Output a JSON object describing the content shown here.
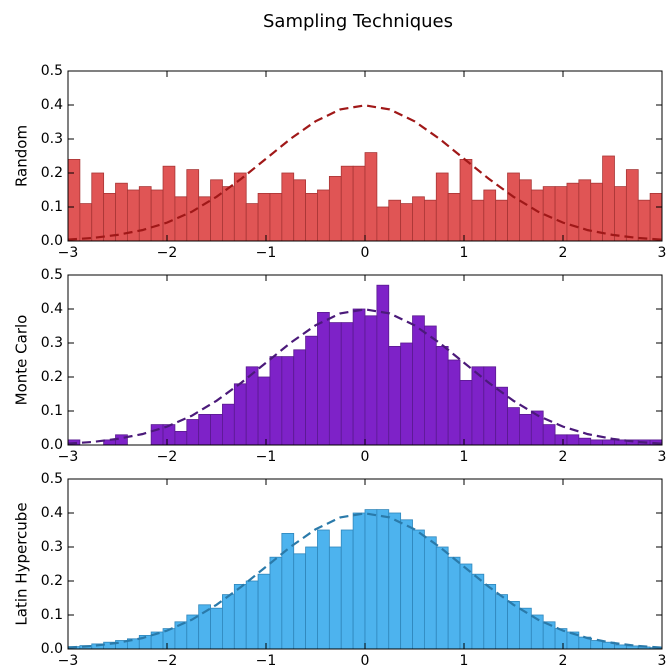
{
  "title": "Sampling Techniques",
  "chart_data": [
    {
      "type": "histogram",
      "ylabel": "Random",
      "color": "#e05555",
      "edgecolor": "#a83535",
      "bins": [
        -3,
        -2.88,
        -2.76,
        -2.64,
        -2.52,
        -2.4,
        -2.28,
        -2.16,
        -2.04,
        -1.92,
        -1.8,
        -1.68,
        -1.56,
        -1.44,
        -1.32,
        -1.2,
        -1.08,
        -0.96,
        -0.84,
        -0.72,
        -0.6,
        -0.48,
        -0.36,
        -0.24,
        -0.12,
        0,
        0.12,
        0.24,
        0.36,
        0.48,
        0.6,
        0.72,
        0.84,
        0.96,
        1.08,
        1.2,
        1.32,
        1.44,
        1.56,
        1.68,
        1.8,
        1.92,
        2.04,
        2.16,
        2.28,
        2.4,
        2.52,
        2.64,
        2.76,
        2.88,
        3
      ],
      "values": [
        0.24,
        0.11,
        0.2,
        0.14,
        0.17,
        0.15,
        0.16,
        0.15,
        0.22,
        0.13,
        0.21,
        0.13,
        0.18,
        0.16,
        0.2,
        0.11,
        0.14,
        0.14,
        0.2,
        0.18,
        0.14,
        0.15,
        0.19,
        0.22,
        0.22,
        0.26,
        0.1,
        0.12,
        0.11,
        0.13,
        0.12,
        0.2,
        0.14,
        0.24,
        0.12,
        0.15,
        0.12,
        0.2,
        0.18,
        0.15,
        0.16,
        0.16,
        0.17,
        0.18,
        0.17,
        0.25,
        0.16,
        0.21,
        0.12,
        0.14
      ],
      "curve": {
        "color": "#a01818",
        "x": [
          -3,
          -2.75,
          -2.5,
          -2.25,
          -2,
          -1.75,
          -1.5,
          -1.25,
          -1,
          -0.75,
          -0.5,
          -0.25,
          0,
          0.25,
          0.5,
          0.75,
          1,
          1.25,
          1.5,
          1.75,
          2,
          2.25,
          2.5,
          2.75,
          3
        ],
        "values": [
          0.004,
          0.009,
          0.018,
          0.032,
          0.054,
          0.086,
          0.13,
          0.183,
          0.242,
          0.301,
          0.352,
          0.387,
          0.399,
          0.387,
          0.352,
          0.301,
          0.242,
          0.183,
          0.13,
          0.086,
          0.054,
          0.032,
          0.018,
          0.009,
          0.004
        ]
      },
      "xlim": [
        -3,
        3
      ],
      "ylim": [
        0,
        0.5
      ],
      "xticks": [
        {
          "value": -3,
          "label": "−3"
        },
        {
          "value": -2,
          "label": "−2"
        },
        {
          "value": -1,
          "label": "−1"
        },
        0,
        1,
        2,
        3
      ],
      "yticks": [
        {
          "value": 0,
          "label": "0.0"
        },
        0.1,
        0.2,
        0.3,
        0.4,
        {
          "value": 0.5,
          "label": "0.5"
        }
      ]
    },
    {
      "type": "histogram",
      "ylabel": "Monte Carlo",
      "color": "#7e22c8",
      "edgecolor": "#5a1a90",
      "bins": [
        -3,
        -2.88,
        -2.76,
        -2.64,
        -2.52,
        -2.4,
        -2.28,
        -2.16,
        -2.04,
        -1.92,
        -1.8,
        -1.68,
        -1.56,
        -1.44,
        -1.32,
        -1.2,
        -1.08,
        -0.96,
        -0.84,
        -0.72,
        -0.6,
        -0.48,
        -0.36,
        -0.24,
        -0.12,
        0,
        0.12,
        0.24,
        0.36,
        0.48,
        0.6,
        0.72,
        0.84,
        0.96,
        1.08,
        1.2,
        1.32,
        1.44,
        1.56,
        1.68,
        1.8,
        1.92,
        2.04,
        2.16,
        2.28,
        2.4,
        2.52,
        2.64,
        2.76,
        2.88,
        3
      ],
      "values": [
        0.015,
        0,
        0,
        0.015,
        0.03,
        0,
        0,
        0.06,
        0.06,
        0.04,
        0.075,
        0.09,
        0.09,
        0.12,
        0.18,
        0.23,
        0.2,
        0.26,
        0.26,
        0.28,
        0.32,
        0.39,
        0.36,
        0.36,
        0.4,
        0.38,
        0.47,
        0.29,
        0.3,
        0.38,
        0.35,
        0.29,
        0.25,
        0.19,
        0.23,
        0.23,
        0.17,
        0.11,
        0.09,
        0.1,
        0.06,
        0.03,
        0.03,
        0.02,
        0.015,
        0.015,
        0.015,
        0.015,
        0.015,
        0.015
      ],
      "curve": {
        "color": "#4b1a7a",
        "x": [
          -3,
          -2.75,
          -2.5,
          -2.25,
          -2,
          -1.75,
          -1.5,
          -1.25,
          -1,
          -0.75,
          -0.5,
          -0.25,
          0,
          0.25,
          0.5,
          0.75,
          1,
          1.25,
          1.5,
          1.75,
          2,
          2.25,
          2.5,
          2.75,
          3
        ],
        "values": [
          0.004,
          0.009,
          0.018,
          0.032,
          0.054,
          0.086,
          0.13,
          0.183,
          0.242,
          0.301,
          0.352,
          0.387,
          0.399,
          0.387,
          0.352,
          0.301,
          0.242,
          0.183,
          0.13,
          0.086,
          0.054,
          0.032,
          0.018,
          0.009,
          0.004
        ]
      },
      "xlim": [
        -3,
        3
      ],
      "ylim": [
        0,
        0.5
      ],
      "xticks": [
        {
          "value": -3,
          "label": "−3"
        },
        {
          "value": -2,
          "label": "−2"
        },
        {
          "value": -1,
          "label": "−1"
        },
        0,
        1,
        2,
        3
      ],
      "yticks": [
        {
          "value": 0,
          "label": "0.0"
        },
        0.1,
        0.2,
        0.3,
        0.4,
        {
          "value": 0.5,
          "label": "0.5"
        }
      ]
    },
    {
      "type": "histogram",
      "ylabel": "Latin Hypercube",
      "color": "#4db3ee",
      "edgecolor": "#2f86bb",
      "bins": [
        -3,
        -2.88,
        -2.76,
        -2.64,
        -2.52,
        -2.4,
        -2.28,
        -2.16,
        -2.04,
        -1.92,
        -1.8,
        -1.68,
        -1.56,
        -1.44,
        -1.32,
        -1.2,
        -1.08,
        -0.96,
        -0.84,
        -0.72,
        -0.6,
        -0.48,
        -0.36,
        -0.24,
        -0.12,
        0,
        0.12,
        0.24,
        0.36,
        0.48,
        0.6,
        0.72,
        0.84,
        0.96,
        1.08,
        1.2,
        1.32,
        1.44,
        1.56,
        1.68,
        1.8,
        1.92,
        2.04,
        2.16,
        2.28,
        2.4,
        2.52,
        2.64,
        2.76,
        2.88,
        3
      ],
      "values": [
        0.007,
        0.01,
        0.015,
        0.02,
        0.025,
        0.03,
        0.04,
        0.05,
        0.06,
        0.08,
        0.1,
        0.13,
        0.12,
        0.16,
        0.19,
        0.2,
        0.22,
        0.27,
        0.34,
        0.28,
        0.3,
        0.35,
        0.3,
        0.35,
        0.4,
        0.41,
        0.41,
        0.4,
        0.38,
        0.35,
        0.33,
        0.3,
        0.27,
        0.25,
        0.22,
        0.19,
        0.16,
        0.14,
        0.12,
        0.1,
        0.08,
        0.06,
        0.05,
        0.035,
        0.025,
        0.02,
        0.012,
        0.009,
        0.006,
        0.004
      ],
      "curve": {
        "color": "#2a7aaa",
        "x": [
          -3,
          -2.75,
          -2.5,
          -2.25,
          -2,
          -1.75,
          -1.5,
          -1.25,
          -1,
          -0.75,
          -0.5,
          -0.25,
          0,
          0.25,
          0.5,
          0.75,
          1,
          1.25,
          1.5,
          1.75,
          2,
          2.25,
          2.5,
          2.75,
          3
        ],
        "values": [
          0.004,
          0.009,
          0.018,
          0.032,
          0.054,
          0.086,
          0.13,
          0.183,
          0.242,
          0.301,
          0.352,
          0.387,
          0.399,
          0.387,
          0.352,
          0.301,
          0.242,
          0.183,
          0.13,
          0.086,
          0.054,
          0.032,
          0.018,
          0.009,
          0.004
        ]
      },
      "xlim": [
        -3,
        3
      ],
      "ylim": [
        0,
        0.5
      ],
      "xticks": [
        {
          "value": -3,
          "label": "−3"
        },
        {
          "value": -2,
          "label": "−2"
        },
        {
          "value": -1,
          "label": "−1"
        },
        0,
        1,
        2,
        3
      ],
      "yticks": [
        {
          "value": 0,
          "label": "0.0"
        },
        0.1,
        0.2,
        0.3,
        0.4,
        {
          "value": 0.5,
          "label": "0.5"
        }
      ]
    }
  ]
}
